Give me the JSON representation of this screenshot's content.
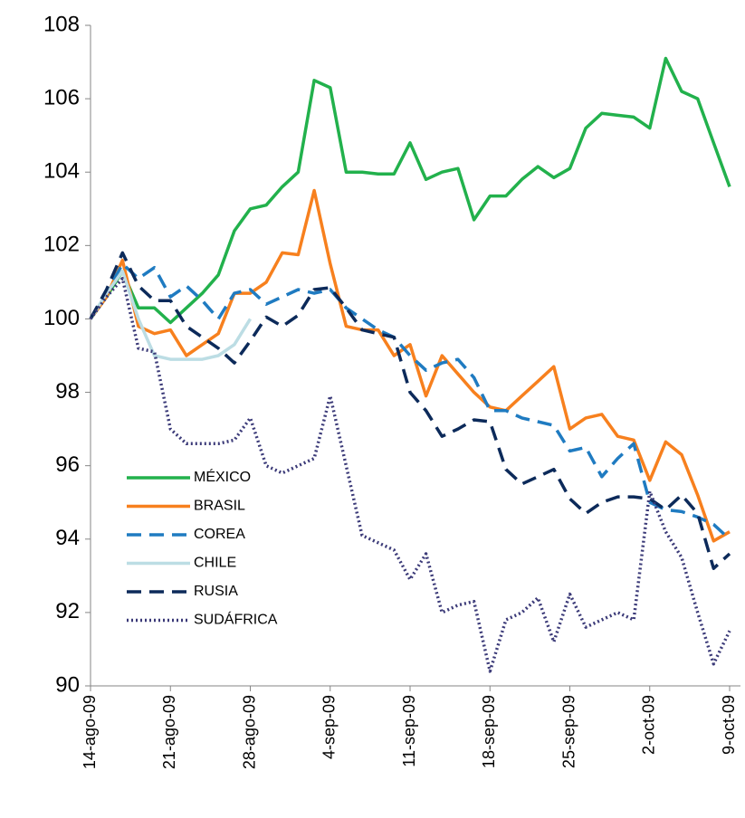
{
  "chart_data": {
    "type": "line",
    "categories": [
      "14-ago-09",
      null,
      null,
      null,
      null,
      "21-ago-09",
      null,
      null,
      null,
      null,
      "28-ago-09",
      null,
      null,
      null,
      null,
      "4-sep-09",
      null,
      null,
      null,
      null,
      "11-sep-09",
      null,
      null,
      null,
      null,
      "18-sep-09",
      null,
      null,
      null,
      null,
      "25-sep-09",
      null,
      null,
      null,
      null,
      "2-oct-09",
      null,
      null,
      null,
      null,
      "9-oct-09"
    ],
    "ylim": [
      90,
      108
    ],
    "yticks": [
      90,
      92,
      94,
      96,
      98,
      100,
      102,
      104,
      106,
      108
    ],
    "grid": false,
    "legend": "lower-left",
    "series": [
      {
        "name": "MÉXICO",
        "color": "#22b14c",
        "style": "solid",
        "values": [
          100,
          100.6,
          101.3,
          100.3,
          100.3,
          99.9,
          100.3,
          100.7,
          101.2,
          102.4,
          103.0,
          103.1,
          103.6,
          104.0,
          106.5,
          106.3,
          104.0,
          104.0,
          103.95,
          103.95,
          104.8,
          103.8,
          104.0,
          104.1,
          102.7,
          103.35,
          103.35,
          103.8,
          104.15,
          103.85,
          104.1,
          105.2,
          105.6,
          105.55,
          105.5,
          105.2,
          107.1,
          106.2,
          106.0,
          104.8,
          103.6
        ]
      },
      {
        "name": "BRASIL",
        "color": "#f7801e",
        "style": "solid",
        "values": [
          100,
          100.6,
          101.6,
          99.8,
          99.6,
          99.7,
          99.0,
          99.3,
          99.6,
          100.7,
          100.7,
          101.0,
          101.8,
          101.75,
          103.5,
          101.5,
          99.8,
          99.7,
          99.7,
          99.0,
          99.3,
          97.9,
          99.0,
          98.5,
          98.0,
          97.6,
          97.5,
          97.9,
          98.3,
          98.7,
          97.0,
          97.3,
          97.4,
          96.8,
          96.7,
          95.6,
          96.65,
          96.3,
          95.2,
          93.95,
          94.2
        ]
      },
      {
        "name": "COREA",
        "color": "#1f7bc1",
        "style": "dashed",
        "values": [
          100,
          100.7,
          101.5,
          101.1,
          101.4,
          100.6,
          100.9,
          100.5,
          100.0,
          100.7,
          100.8,
          100.4,
          100.6,
          100.8,
          100.7,
          100.8,
          100.3,
          100.0,
          99.7,
          99.5,
          99.0,
          98.6,
          98.8,
          98.9,
          98.4,
          97.5,
          97.5,
          97.3,
          97.2,
          97.1,
          96.4,
          96.5,
          95.7,
          96.2,
          96.6,
          95.0,
          94.8,
          94.75,
          94.6,
          94.4,
          94.0
        ]
      },
      {
        "name": "CHILE",
        "color": "#bcdde4",
        "style": "solid",
        "values": [
          100,
          100.7,
          101.3,
          100.0,
          99.0,
          98.9,
          98.9,
          98.9,
          99.0,
          99.3,
          100.0,
          null,
          null,
          null,
          null,
          null,
          null,
          null,
          null,
          null,
          null,
          null,
          null,
          null,
          null,
          null,
          null,
          null,
          null,
          null,
          null,
          null,
          null,
          null,
          null,
          null,
          null,
          null,
          null,
          null,
          null
        ]
      },
      {
        "name": "RUSIA",
        "color": "#0c2a5a",
        "style": "dashed",
        "values": [
          100,
          100.8,
          101.8,
          100.9,
          100.5,
          100.5,
          99.8,
          99.5,
          99.2,
          98.8,
          99.4,
          100.05,
          99.8,
          100.1,
          100.8,
          100.85,
          100.3,
          99.7,
          99.6,
          99.5,
          98.0,
          97.5,
          96.8,
          97.0,
          97.25,
          97.2,
          95.9,
          95.5,
          95.7,
          95.9,
          95.1,
          94.7,
          95.0,
          95.15,
          95.15,
          95.1,
          94.8,
          95.2,
          94.7,
          93.2,
          93.6
        ]
      },
      {
        "name": "SUDÁFRICA",
        "color": "#3b3a78",
        "style": "dotted",
        "values": [
          100,
          100.6,
          101.1,
          99.2,
          99.1,
          97.0,
          96.6,
          96.6,
          96.6,
          96.7,
          97.3,
          96.0,
          95.8,
          96.0,
          96.2,
          97.9,
          96.0,
          94.1,
          93.9,
          93.7,
          92.9,
          93.6,
          92.0,
          92.2,
          92.3,
          90.4,
          91.8,
          92.0,
          92.4,
          91.2,
          92.5,
          91.6,
          91.8,
          92.0,
          91.8,
          95.3,
          94.2,
          93.5,
          92.0,
          90.6,
          91.5
        ]
      }
    ]
  }
}
